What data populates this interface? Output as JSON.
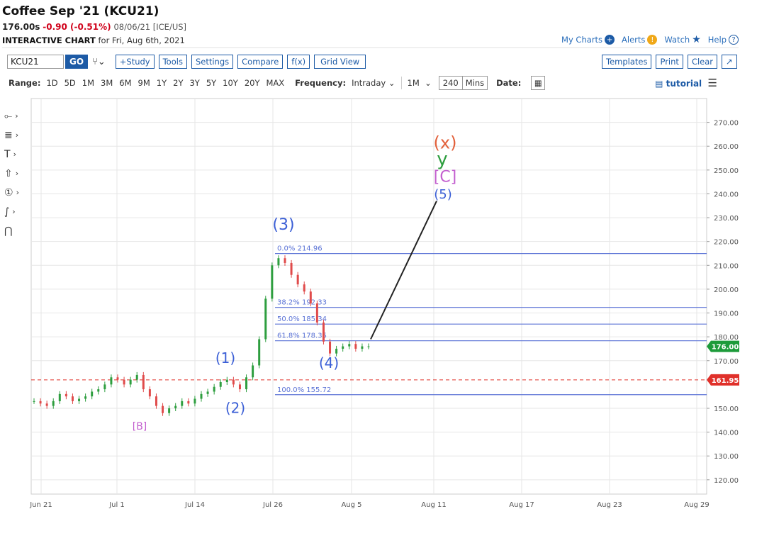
{
  "header": {
    "title": "Coffee Sep '21 (KCU21)",
    "last": "176.00s",
    "change": "-0.90 (-0.51%)",
    "meta": "08/06/21 [ICE/US]",
    "sub_bold": "INTERACTIVE CHART",
    "sub_rest": "for Fri, Aug 6th, 2021"
  },
  "toplinks": {
    "my_charts": "My Charts",
    "alerts": "Alerts",
    "watch": "Watch",
    "help": "Help"
  },
  "toolbar": {
    "symbol": "KCU21",
    "go": "GO",
    "study": "+Study",
    "tools": "Tools",
    "settings": "Settings",
    "compare": "Compare",
    "fx": "f(x)",
    "grid": "Grid View",
    "templates": "Templates",
    "print": "Print",
    "clear": "Clear"
  },
  "range": {
    "label": "Range:",
    "options": [
      "1D",
      "5D",
      "1M",
      "3M",
      "6M",
      "9M",
      "1Y",
      "2Y",
      "3Y",
      "5Y",
      "10Y",
      "20Y",
      "MAX"
    ],
    "frequency_label": "Frequency:",
    "frequency": "Intraday",
    "period": "1M",
    "minutes": "240",
    "minutes_unit": "Mins",
    "date_label": "Date:",
    "tutorial": "tutorial"
  },
  "colors": {
    "up": "#2e9e3f",
    "down": "#e04b4b",
    "fib": "#5b73d6",
    "wave": "#3b5fd6",
    "pink": "#c35fcf",
    "last_bg": "#1d9b3a",
    "prev_bg": "#e0302a"
  },
  "chart_data": {
    "type": "line",
    "x_ticks": [
      "Jun 21",
      "Jul 1",
      "Jul 14",
      "Jul 26",
      "Aug 5",
      "Aug 11",
      "Aug 17",
      "Aug 23",
      "Aug 29"
    ],
    "y_ticks": [
      "270.00",
      "260.00",
      "250.00",
      "240.00",
      "230.00",
      "220.00",
      "210.00",
      "200.00",
      "190.00",
      "180.00",
      "170.00",
      "150.00",
      "140.00",
      "130.00",
      "120.00"
    ],
    "y_tick_values": [
      270,
      260,
      250,
      240,
      230,
      220,
      210,
      200,
      190,
      180,
      170,
      150,
      140,
      130,
      120
    ],
    "ylim": [
      114,
      280
    ],
    "last_price": "176.00",
    "last_value": 176.0,
    "prev_close": "161.95",
    "prev_value": 161.95,
    "fib_levels": [
      {
        "label": "0.0% 214.96",
        "value": 214.96
      },
      {
        "label": "38.2% 192.33",
        "value": 192.33
      },
      {
        "label": "50.0% 185.34",
        "value": 185.34
      },
      {
        "label": "61.8% 178.35",
        "value": 178.35
      },
      {
        "label": "100.0% 155.72",
        "value": 155.72
      }
    ],
    "wave_labels": [
      {
        "text": "[B]",
        "x": "Jul 5",
        "y": 141
      },
      {
        "text": "(1)",
        "x": "Jul 19",
        "y": 169
      },
      {
        "text": "(2)",
        "x": "Jul 19",
        "y": 148
      },
      {
        "text": "(3)",
        "x": "Jul 26",
        "y": 225
      },
      {
        "text": "(4)",
        "x": "Aug 2",
        "y": 167
      },
      {
        "text": "(5)",
        "x": "Aug 11",
        "y": 238
      },
      {
        "text": "[C]",
        "x": "Aug 11",
        "y": 245
      },
      {
        "text": "y",
        "x": "Aug 11",
        "y": 252
      },
      {
        "text": "(x)",
        "x": "Aug 11",
        "y": 259
      }
    ],
    "projection": {
      "from": [
        "Aug 6",
        179
      ],
      "to": [
        "Aug 11",
        237
      ]
    },
    "series": [
      {
        "values": [
          153,
          152,
          151,
          153,
          156,
          155,
          153,
          154,
          155,
          157,
          158,
          160,
          163,
          162,
          160,
          162,
          164,
          158,
          155,
          151,
          148,
          150,
          151,
          153,
          152,
          154,
          156,
          157,
          159,
          161,
          162,
          160,
          158,
          163,
          168,
          179,
          196,
          210,
          213,
          211,
          206,
          202,
          199,
          194,
          186,
          178,
          173,
          175,
          176,
          177,
          175,
          176,
          176
        ]
      }
    ]
  }
}
